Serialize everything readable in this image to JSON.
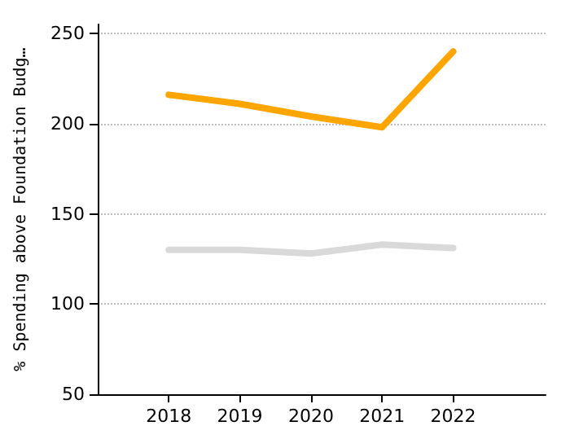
{
  "chart_data": {
    "type": "line",
    "ylabel": "% Spending above Foundation Budg…",
    "x": [
      2018,
      2019,
      2020,
      2021,
      2022
    ],
    "series": [
      {
        "color": "#ffa500",
        "values": [
          216,
          211,
          204,
          198,
          240
        ]
      },
      {
        "color": "#d9d9d9",
        "values": [
          130,
          130,
          128,
          133,
          131
        ]
      }
    ],
    "xlim": [
      2017,
      2023.3
    ],
    "xticks": [
      2018,
      2019,
      2020,
      2021,
      2022
    ],
    "ylim": [
      50,
      255
    ],
    "yticks": [
      50,
      100,
      150,
      200,
      250
    ],
    "grid": "y",
    "marker": "none",
    "line_style": "solid"
  }
}
